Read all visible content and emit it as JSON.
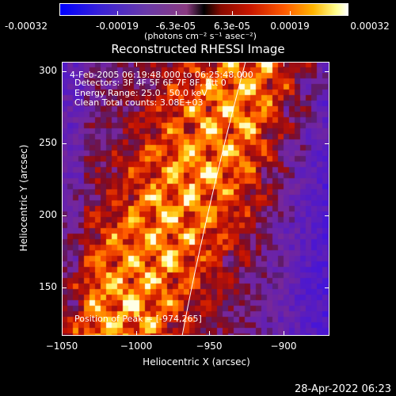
{
  "colorbar": {
    "tick_labels": [
      "-0.00032",
      "-0.00019",
      "-6.3e-05",
      "6.3e-05",
      "0.00019",
      "0.00032"
    ],
    "unit_label": "(photons cm⁻² s⁻¹ asec⁻²)",
    "min": -0.00032,
    "max": 0.00032
  },
  "title": "Reconstructed RHESSI Image",
  "annotations": {
    "time_range": "4-Feb-2005 06:19:48.000 to 06:25:48.000",
    "detectors": "Detectors: 3F 4F 5F 6F 7F 8F, Att 0",
    "energy_range": "Energy Range: 25.0 - 50.0 keV",
    "method_counts": "Clean     Total counts: 3.08E+03",
    "peak_position": "Position of Peak = [-974,265]"
  },
  "axes": {
    "xlabel": "Heliocentric X (arcsec)",
    "ylabel": "Heliocentric Y (arcsec)",
    "x_ticks": [
      "−1050",
      "−1000",
      "−950",
      "−900"
    ],
    "y_ticks": [
      "150",
      "200",
      "250",
      "300"
    ],
    "xlim": [
      -1050,
      -915
    ],
    "ylim": [
      112,
      310
    ]
  },
  "timestamp": "28-Apr-2022 06:23",
  "colors": {
    "background": "#000000",
    "limb_line": "#ffffff",
    "colormap_low": "#0000ff",
    "colormap_high": "#ffffff"
  }
}
